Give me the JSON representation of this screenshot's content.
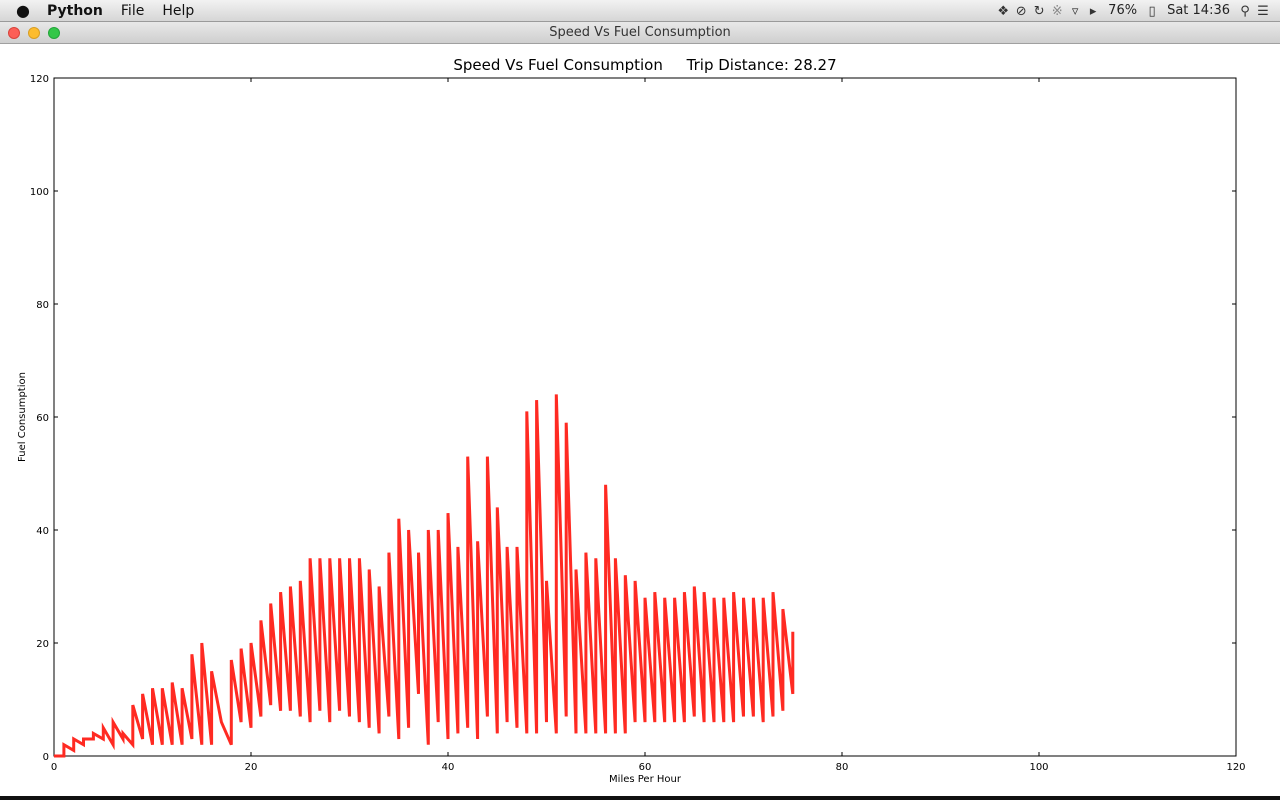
{
  "menubar": {
    "app_name": "Python",
    "menus": [
      "File",
      "Help"
    ],
    "status": {
      "battery": "76%",
      "clock": "Sat 14:36"
    },
    "icons": [
      "apple-icon",
      "dropbox-icon",
      "sync-icon",
      "time-machine-icon",
      "bluetooth-icon",
      "wifi-icon",
      "volume-icon",
      "battery-icon",
      "search-icon",
      "list-icon"
    ]
  },
  "window": {
    "title": "Speed Vs Fuel Consumption"
  },
  "chart_data": {
    "type": "line",
    "title": "Speed Vs Fuel Consumption     Trip Distance: 28.27",
    "xlabel": "Miles Per Hour",
    "ylabel": "Fuel Consumption",
    "xlim": [
      0,
      120
    ],
    "ylim": [
      0,
      120
    ],
    "xticks": [
      0,
      20,
      40,
      60,
      80,
      100,
      120
    ],
    "yticks": [
      0,
      20,
      40,
      60,
      80,
      100,
      120
    ],
    "grid": false,
    "color": "#ff2a22",
    "series": [
      {
        "x": [
          0,
          1,
          1,
          2,
          2,
          3,
          3,
          4,
          4,
          5,
          5,
          6,
          6,
          7,
          7,
          8,
          8,
          9,
          9,
          10,
          10,
          11,
          11,
          12,
          12,
          13,
          13,
          14,
          14,
          15,
          15,
          16,
          16,
          17,
          17,
          18,
          18,
          19,
          19,
          20,
          20,
          21,
          21,
          22,
          22,
          23,
          23,
          24,
          24,
          25,
          25,
          26,
          26,
          27,
          27,
          28,
          28,
          29,
          29,
          30,
          30,
          31,
          31,
          32,
          32,
          33,
          33,
          34,
          34,
          35,
          35,
          36,
          36,
          37,
          37,
          38,
          38,
          39,
          39,
          40,
          40,
          41,
          41,
          42,
          42,
          43,
          43,
          44,
          44,
          45,
          45,
          46,
          46,
          47,
          47,
          48,
          48,
          49,
          49,
          50,
          50,
          51,
          51,
          52,
          52,
          53,
          53,
          54,
          54,
          55,
          55,
          56,
          56,
          57,
          57,
          58,
          58,
          59,
          59,
          60,
          60,
          61,
          61,
          62,
          62,
          63,
          63,
          64,
          64,
          65,
          65,
          66,
          66,
          67,
          67,
          68,
          68,
          69,
          69,
          70,
          70,
          71,
          71,
          72,
          72,
          73,
          73,
          74,
          74,
          75,
          75
        ],
        "y": [
          0,
          0,
          2,
          1,
          3,
          2,
          3,
          3,
          4,
          3,
          5,
          2,
          6,
          3,
          4,
          2,
          9,
          3,
          11,
          2,
          12,
          2,
          12,
          2,
          13,
          2,
          12,
          3,
          18,
          2,
          20,
          2,
          15,
          6,
          6,
          2,
          17,
          6,
          19,
          5,
          20,
          7,
          24,
          9,
          27,
          8,
          29,
          8,
          30,
          7,
          31,
          6,
          35,
          8,
          35,
          6,
          35,
          8,
          35,
          7,
          35,
          6,
          35,
          5,
          33,
          4,
          30,
          7,
          36,
          3,
          42,
          5,
          40,
          11,
          36,
          2,
          40,
          6,
          40,
          3,
          43,
          4,
          37,
          5,
          53,
          3,
          38,
          7,
          53,
          4,
          44,
          6,
          37,
          5,
          37,
          4,
          61,
          4,
          63,
          6,
          31,
          4,
          64,
          7,
          59,
          4,
          33,
          4,
          36,
          4,
          35,
          4,
          48,
          4,
          35,
          4,
          32,
          6,
          31,
          6,
          28,
          6,
          29,
          6,
          28,
          6,
          28,
          6,
          29,
          7,
          30,
          6,
          29,
          6,
          28,
          6,
          28,
          6,
          29,
          7,
          28,
          7,
          28,
          6,
          28,
          7,
          29,
          8,
          26,
          11,
          22
        ]
      }
    ]
  }
}
